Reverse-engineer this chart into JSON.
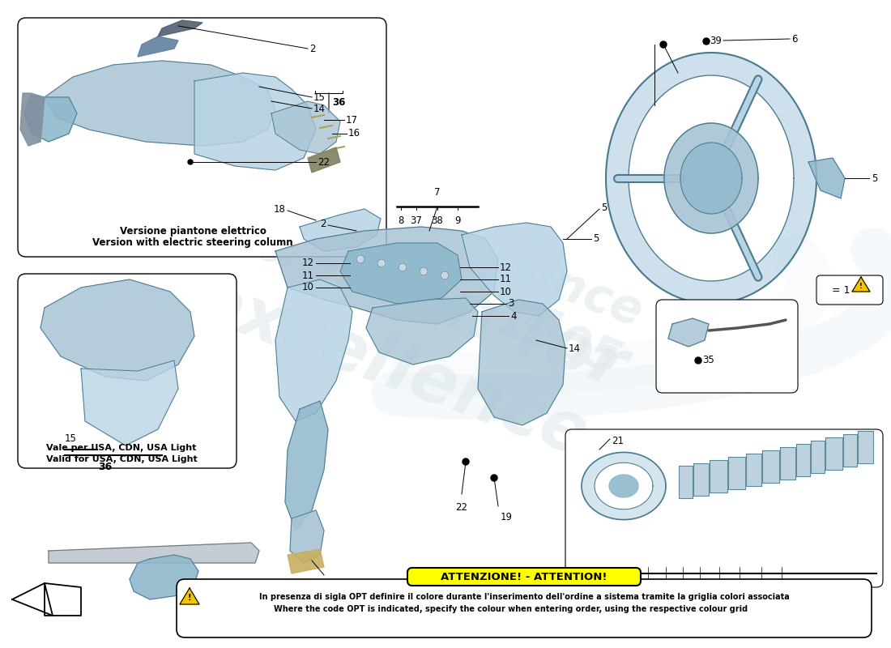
{
  "bg_color": "#ffffff",
  "fig_width": 11.0,
  "fig_height": 8.0,
  "dpi": 100,
  "cc": "#a8c4d4",
  "cc2": "#b8d4e4",
  "cc3": "#8fb8cc",
  "line_color": "#4a7a90",
  "attention_title": "ATTENZIONE! - ATTENTION!",
  "attention_text_it": "In presenza di sigla OPT definire il colore durante l'inserimento dell'ordine a sistema tramite la griglia colori associata",
  "attention_text_en": "Where the code OPT is indicated, specify the colour when entering order, using the respective colour grid",
  "caption1_it": "Versione piantone elettrico",
  "caption1_en": "Version with electric steering column",
  "caption2_it": "Vale per USA, CDN, USA Light",
  "caption2_en": "Valid for USA, CDN, USA Light"
}
